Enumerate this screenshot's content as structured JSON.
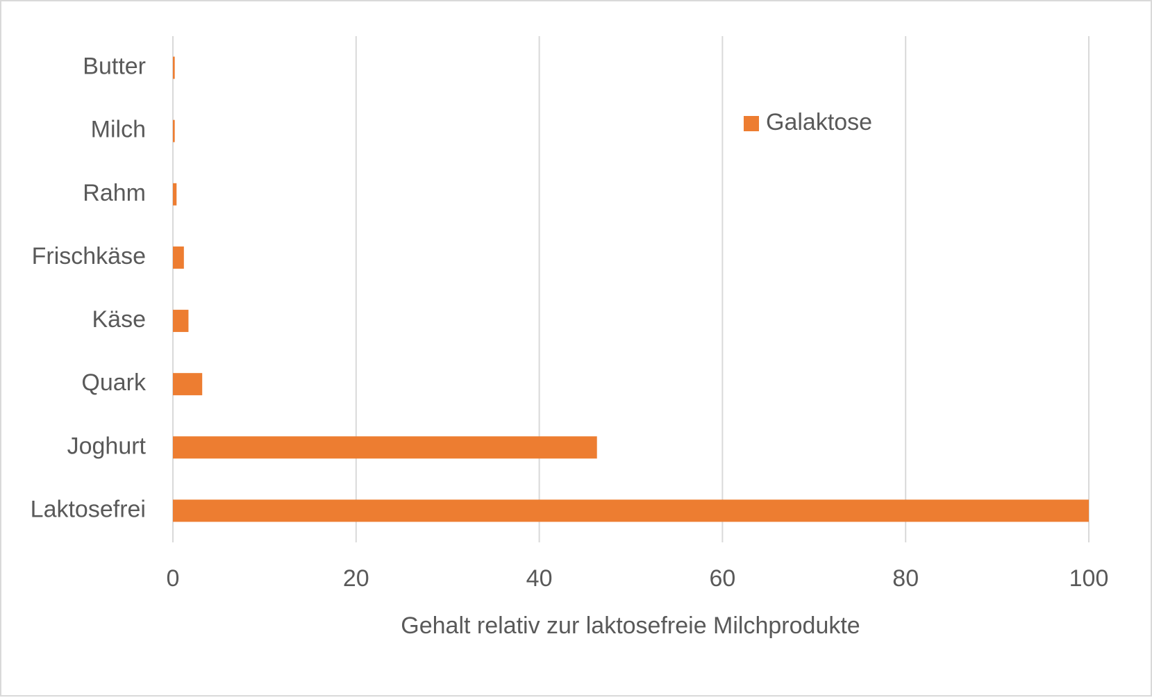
{
  "chart_data": {
    "type": "barh",
    "categories": [
      "Butter",
      "Milch",
      "Rahm",
      "Frischkäse",
      "Käse",
      "Quark",
      "Joghurt",
      "Laktosefrei"
    ],
    "series": [
      {
        "name": "Galaktose",
        "color": "#ed7d31",
        "values": [
          0.2,
          0.2,
          0.4,
          1.2,
          1.7,
          3.2,
          46.3,
          100
        ]
      }
    ],
    "xlabel": "Gehalt relativ zur laktosefreie Milchprodukte",
    "xlim": [
      0,
      100
    ],
    "xticks": [
      0,
      20,
      40,
      60,
      80,
      100
    ],
    "grid": true,
    "legend": "upper right"
  }
}
